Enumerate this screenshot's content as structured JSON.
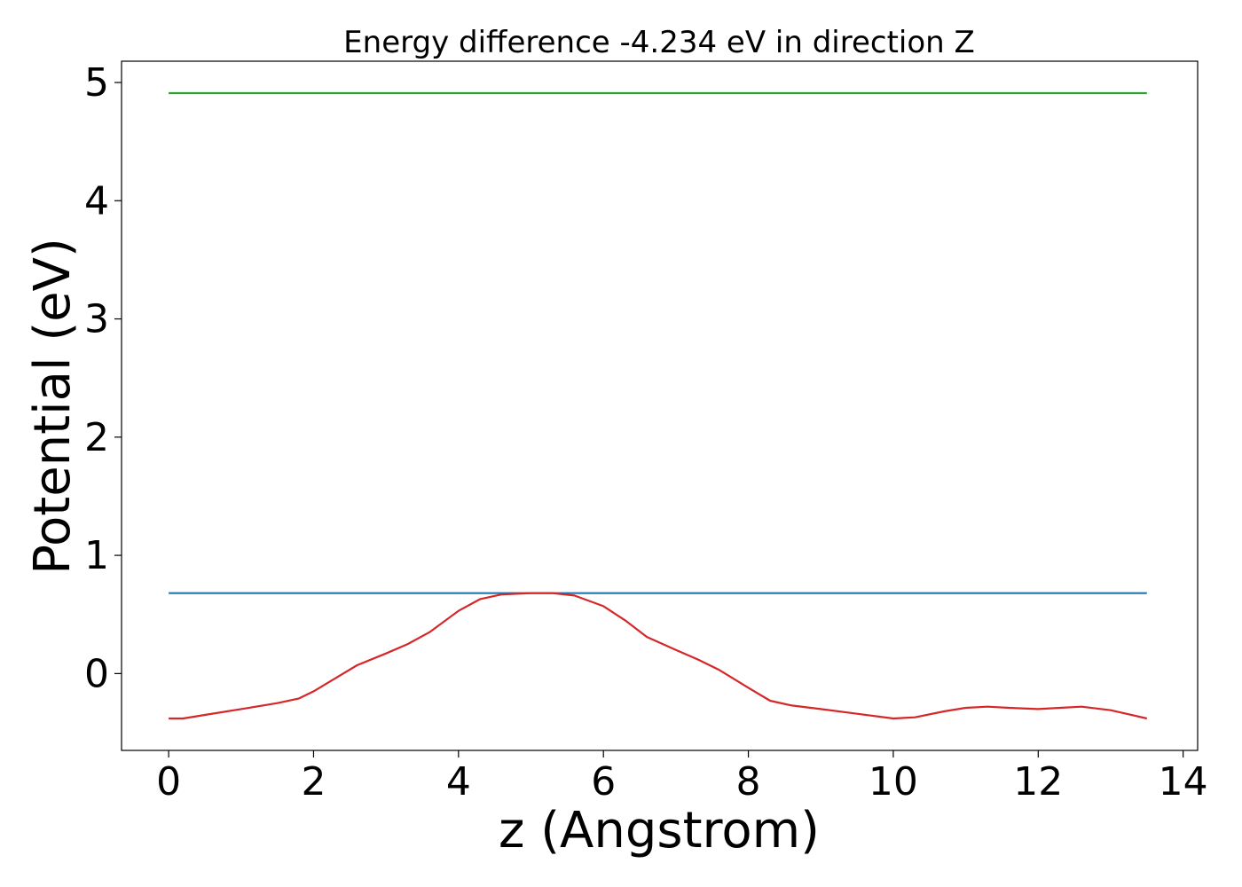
{
  "chart_data": {
    "type": "line",
    "title": "Energy difference -4.234 eV in direction Z",
    "xlabel": "z (Angstrom)",
    "ylabel": "Potential (eV)",
    "xlim": [
      -0.65,
      14.2
    ],
    "ylim": [
      -0.65,
      5.18
    ],
    "xticks": [
      0,
      2,
      4,
      6,
      8,
      10,
      12,
      14
    ],
    "yticks": [
      0,
      1,
      2,
      3,
      4,
      5
    ],
    "grid": false,
    "legend": "none",
    "series": [
      {
        "color": "#2ca02c",
        "x": [
          0,
          13.5
        ],
        "y": [
          4.91,
          4.91
        ]
      },
      {
        "color": "#1f77b4",
        "x": [
          0,
          13.5
        ],
        "y": [
          0.68,
          0.68
        ]
      },
      {
        "color": "#d62728",
        "x": [
          0,
          0.2,
          0.5,
          1.0,
          1.5,
          1.8,
          2.0,
          2.3,
          2.6,
          3.0,
          3.3,
          3.6,
          4.0,
          4.3,
          4.6,
          5.0,
          5.3,
          5.6,
          6.0,
          6.3,
          6.6,
          7.0,
          7.3,
          7.6,
          8.0,
          8.3,
          8.6,
          9.0,
          9.5,
          10.0,
          10.3,
          10.7,
          11.0,
          11.3,
          11.6,
          12.0,
          12.3,
          12.6,
          13.0,
          13.5
        ],
        "y": [
          -0.38,
          -0.38,
          -0.35,
          -0.3,
          -0.25,
          -0.21,
          -0.15,
          -0.04,
          0.07,
          0.17,
          0.25,
          0.35,
          0.53,
          0.63,
          0.67,
          0.68,
          0.68,
          0.66,
          0.57,
          0.45,
          0.31,
          0.2,
          0.12,
          0.03,
          -0.12,
          -0.23,
          -0.27,
          -0.3,
          -0.34,
          -0.38,
          -0.37,
          -0.32,
          -0.29,
          -0.28,
          -0.29,
          -0.3,
          -0.29,
          -0.28,
          -0.31,
          -0.38
        ]
      }
    ]
  }
}
